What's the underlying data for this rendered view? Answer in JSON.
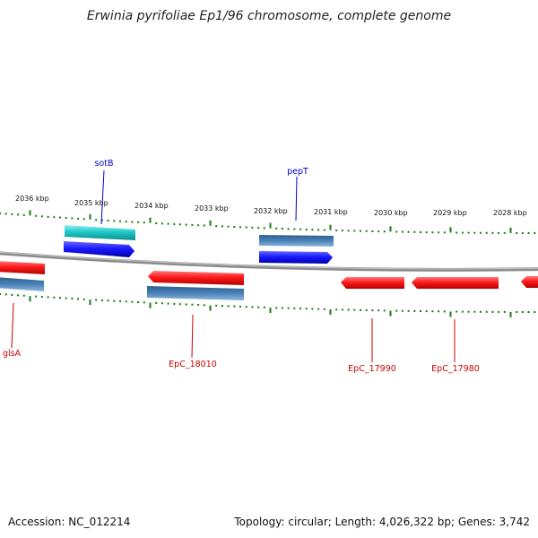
{
  "title": "Erwinia pyrifoliae Ep1/96 chromosome, complete genome",
  "accession": "Accession: NC_012214",
  "topology": "Topology: circular; Length: 4,026,322 bp; Genes: 3,742",
  "colors": {
    "backbone": "#8c8c8c",
    "tick": "#1a7a1a",
    "cds_label": "#cc0000",
    "gene_label": "#0000cc",
    "red_feature": "#ff1a1a",
    "blue_feature": "#1a1aff",
    "cyan_feature": "#1fc8c8",
    "steel_feature": "#4a82b8"
  },
  "kbp_labels": [
    "2036 kbp",
    "2035 kbp",
    "2034 kbp",
    "2033 kbp",
    "2032 kbp",
    "2031 kbp",
    "2030 kbp",
    "2029 kbp",
    "2028 kbp"
  ],
  "gene_labels": [
    {
      "id": "sotB",
      "text": "sotB",
      "kind": "gene"
    },
    {
      "id": "pepT",
      "text": "pepT",
      "kind": "gene"
    },
    {
      "id": "glsA",
      "text": "glsA",
      "kind": "cds"
    },
    {
      "id": "EpC_18010",
      "text": "EpC_18010",
      "kind": "cds"
    },
    {
      "id": "EpC_17990",
      "text": "EpC_17990",
      "kind": "cds"
    },
    {
      "id": "EpC_17980",
      "text": "EpC_17980",
      "kind": "cds"
    }
  ]
}
